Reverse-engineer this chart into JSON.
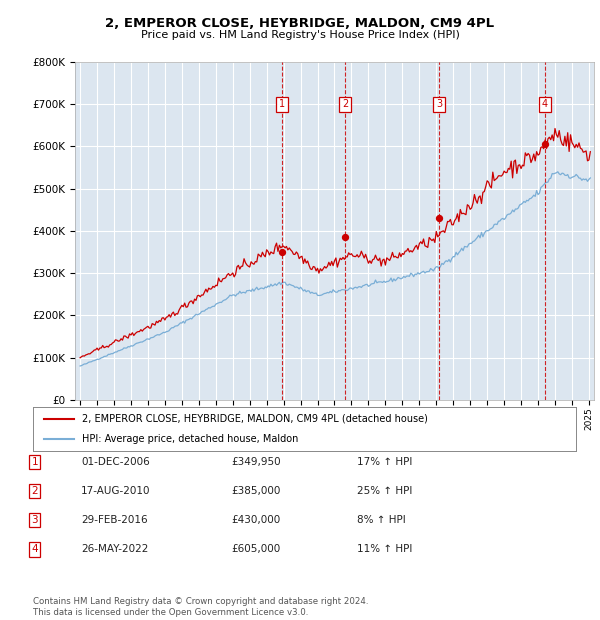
{
  "title": "2, EMPEROR CLOSE, HEYBRIDGE, MALDON, CM9 4PL",
  "subtitle": "Price paid vs. HM Land Registry's House Price Index (HPI)",
  "ylim": [
    0,
    800000
  ],
  "yticks": [
    0,
    100000,
    200000,
    300000,
    400000,
    500000,
    600000,
    700000,
    800000
  ],
  "ytick_labels": [
    "£0",
    "£100K",
    "£200K",
    "£300K",
    "£400K",
    "£500K",
    "£600K",
    "£700K",
    "£800K"
  ],
  "xlim_start": 1994.7,
  "xlim_end": 2025.3,
  "background_color": "#dce6f0",
  "grid_color": "#ffffff",
  "line_color_red": "#cc0000",
  "line_color_blue": "#7aaed6",
  "transactions": [
    {
      "num": 1,
      "date": "01-DEC-2006",
      "year": 2006.92,
      "price": 349950,
      "pct": "17%",
      "dir": "↑"
    },
    {
      "num": 2,
      "date": "17-AUG-2010",
      "year": 2010.63,
      "price": 385000,
      "pct": "25%",
      "dir": "↑"
    },
    {
      "num": 3,
      "date": "29-FEB-2016",
      "year": 2016.16,
      "price": 430000,
      "pct": "8%",
      "dir": "↑"
    },
    {
      "num": 4,
      "date": "26-MAY-2022",
      "year": 2022.4,
      "price": 605000,
      "pct": "11%",
      "dir": "↑"
    }
  ],
  "legend_line1": "2, EMPEROR CLOSE, HEYBRIDGE, MALDON, CM9 4PL (detached house)",
  "legend_line2": "HPI: Average price, detached house, Maldon",
  "footer": "Contains HM Land Registry data © Crown copyright and database right 2024.\nThis data is licensed under the Open Government Licence v3.0.",
  "table_rows": [
    [
      "1",
      "01-DEC-2006",
      "£349,950",
      "17% ↑ HPI"
    ],
    [
      "2",
      "17-AUG-2010",
      "£385,000",
      "25% ↑ HPI"
    ],
    [
      "3",
      "29-FEB-2016",
      "£430,000",
      "8% ↑ HPI"
    ],
    [
      "4",
      "26-MAY-2022",
      "£605,000",
      "11% ↑ HPI"
    ]
  ]
}
